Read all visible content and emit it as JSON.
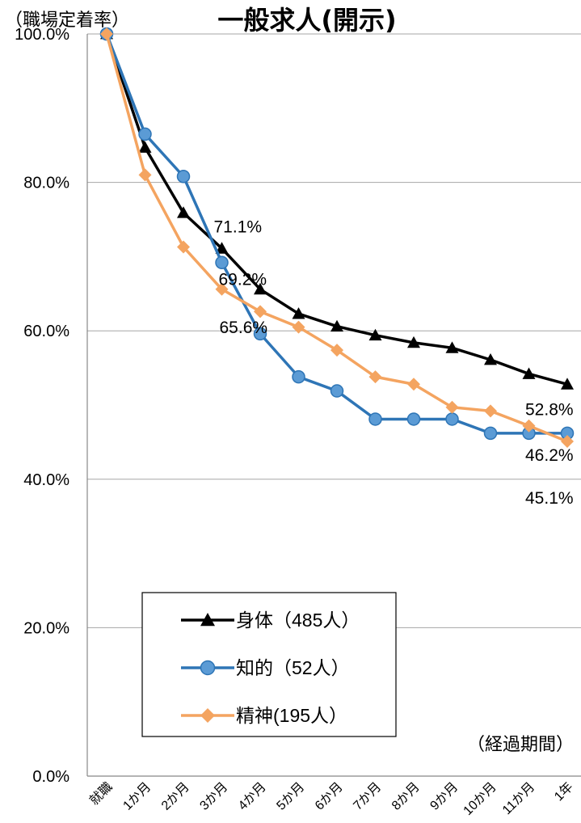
{
  "chart_data": {
    "type": "line",
    "title": "一般求人(開示)",
    "ylabel": "（職場定着率）",
    "xlabel": "（経過期間）",
    "ylim": [
      0,
      100
    ],
    "y_ticks": [
      "0.0%",
      "20.0%",
      "40.0%",
      "60.0%",
      "80.0%",
      "100.0%"
    ],
    "categories": [
      "就職",
      "1か月",
      "2か月",
      "3か月",
      "4か月",
      "5か月",
      "6か月",
      "7か月",
      "8か月",
      "9か月",
      "10か月",
      "11か月",
      "1年"
    ],
    "grid": true,
    "legend_position": "bottom-left",
    "series": [
      {
        "name": "身体（485人）",
        "color": "#000000",
        "marker": "triangle",
        "values": [
          100.0,
          84.7,
          75.9,
          71.1,
          65.6,
          62.3,
          60.6,
          59.4,
          58.4,
          57.7,
          56.1,
          54.2,
          52.8
        ]
      },
      {
        "name": "知的（52人）",
        "color": "#2e75b6",
        "marker": "circle",
        "values": [
          100.0,
          86.5,
          80.8,
          69.2,
          59.6,
          53.8,
          51.9,
          48.1,
          48.1,
          48.1,
          46.2,
          46.2,
          46.2
        ]
      },
      {
        "name": "精神(195人）",
        "color": "#f4a460",
        "marker": "diamond",
        "values": [
          100.0,
          81.0,
          71.3,
          65.6,
          62.6,
          60.5,
          57.4,
          53.8,
          52.8,
          49.7,
          49.2,
          47.2,
          45.1
        ]
      }
    ],
    "data_labels": [
      "71.1%",
      "69.2%",
      "65.6%",
      "52.8%",
      "46.2%",
      "45.1%"
    ]
  }
}
